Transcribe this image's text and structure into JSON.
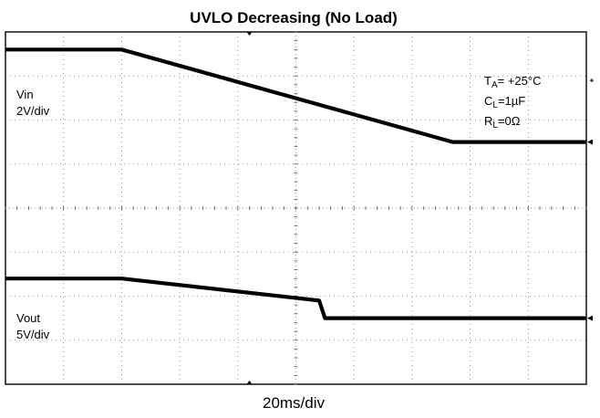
{
  "chart_data": {
    "type": "line",
    "title": "UVLO Decreasing (No Load)",
    "xlabel": "20ms/div",
    "x_divisions": 10,
    "y_divisions": 8,
    "grid": true,
    "conditions": [
      {
        "main": "T",
        "sub": "A",
        "rest": "= +25°C"
      },
      {
        "main": "C",
        "sub": "L",
        "rest": "=1µF"
      },
      {
        "main": "R",
        "sub": "L",
        "rest": "=0Ω"
      }
    ],
    "series": [
      {
        "name": "Vin",
        "scale": "2V/div",
        "label_lines": [
          "Vin",
          "2V/div"
        ],
        "color": "#000000",
        "x_div": [
          0,
          2.0,
          7.7,
          10
        ],
        "y_div": [
          7.6,
          7.6,
          5.5,
          5.5
        ]
      },
      {
        "name": "Vout",
        "scale": "5V/div",
        "label_lines": [
          "Vout",
          "5V/div"
        ],
        "color": "#000000",
        "x_div": [
          0,
          2.0,
          5.4,
          5.5,
          10
        ],
        "y_div": [
          2.4,
          2.4,
          1.9,
          1.5,
          1.5
        ]
      }
    ]
  }
}
